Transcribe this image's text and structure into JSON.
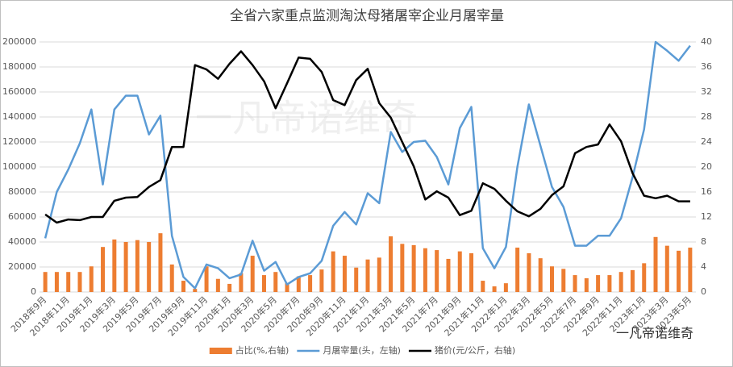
{
  "chart_data": {
    "type": "combo",
    "title": "全省六家重点监测淘汰母猪屠宰企业月屠宰量",
    "categories": [
      "2018年9月",
      null,
      "2018年11月",
      null,
      "2019年1月",
      null,
      "2019年3月",
      null,
      "2019年5月",
      null,
      "2019年7月",
      null,
      "2019年9月",
      null,
      "2019年11月",
      null,
      "2020年1月",
      null,
      "2020年3月",
      null,
      "2020年5月",
      null,
      "2020年7月",
      null,
      "2020年9月",
      null,
      "2020年11月",
      null,
      "2021年1月",
      null,
      "2021年3月",
      null,
      "2021年5月",
      null,
      "2021年7月",
      null,
      "2021年9月",
      null,
      "2021年11月",
      null,
      "2022年1月",
      null,
      "2022年3月",
      null,
      "2022年5月",
      null,
      "2022年7月",
      null,
      "2022年9月",
      null,
      "2022年11月",
      null,
      "2023年1月",
      null,
      "2023年3月",
      null,
      "2023年5月"
    ],
    "series": [
      {
        "name": "占比(%,右轴)",
        "type": "bar",
        "axis": "y2",
        "color": "#ed7d31",
        "values": [
          3.2,
          3.2,
          3.2,
          3.2,
          4.1,
          7.2,
          8.4,
          8.0,
          8.3,
          8.0,
          9.4,
          4.4,
          1.8,
          0.5,
          4.1,
          2.1,
          1.3,
          3.0,
          5.8,
          2.7,
          3.2,
          1.4,
          2.5,
          2.7,
          3.6,
          6.5,
          5.8,
          3.9,
          5.2,
          5.5,
          8.9,
          7.7,
          7.5,
          7.0,
          6.7,
          5.3,
          6.5,
          6.2,
          1.8,
          0.9,
          1.4,
          7.1,
          6.2,
          5.4,
          4.1,
          3.7,
          2.7,
          2.2,
          2.7,
          2.7,
          3.2,
          3.5,
          4.6,
          8.8,
          7.4,
          6.6,
          7.1
        ]
      },
      {
        "name": "月屠宰量(头，左轴)",
        "type": "line",
        "color": "#5b9bd5",
        "values": [
          43000,
          80000,
          98000,
          119000,
          146000,
          86000,
          146000,
          157000,
          157000,
          126000,
          141000,
          45000,
          12000,
          3000,
          22000,
          19000,
          11000,
          14000,
          41000,
          17000,
          24000,
          6000,
          12000,
          15000,
          25000,
          53000,
          64000,
          54000,
          79000,
          71000,
          128000,
          112000,
          120000,
          121000,
          108000,
          86000,
          131000,
          148000,
          35000,
          19000,
          36000,
          100000,
          150000,
          117000,
          84000,
          68000,
          37000,
          37000,
          45000,
          45000,
          59000,
          92000,
          130000,
          200000,
          193000,
          185000,
          197000
        ]
      },
      {
        "name": "猪价(元/公斤，右轴)",
        "type": "line",
        "axis": "y2",
        "color": "#000000",
        "values": [
          12.4,
          11.1,
          11.6,
          11.5,
          12.0,
          12.0,
          14.6,
          15.1,
          15.2,
          16.8,
          17.9,
          23.2,
          23.2,
          36.3,
          35.6,
          34.1,
          36.5,
          38.5,
          36.3,
          33.7,
          29.4,
          33.4,
          37.5,
          37.3,
          35.2,
          30.7,
          29.9,
          33.9,
          35.7,
          30.2,
          27.9,
          24.0,
          20.1,
          14.8,
          16.1,
          15.1,
          12.3,
          13.0,
          17.4,
          16.5,
          14.6,
          12.9,
          12.1,
          13.3,
          15.5,
          16.9,
          22.2,
          23.2,
          23.6,
          26.8,
          24.1,
          19.0,
          15.4,
          15.0,
          15.4,
          14.5,
          14.5
        ]
      }
    ],
    "ylim": [
      0,
      200000
    ],
    "yticks": [
      0,
      20000,
      40000,
      60000,
      80000,
      100000,
      120000,
      140000,
      160000,
      180000,
      200000
    ],
    "y2lim": [
      0,
      40
    ],
    "y2ticks": [
      0,
      4,
      8,
      12,
      16,
      20,
      24,
      28,
      32,
      36,
      40
    ],
    "grid": true,
    "legend": "bottom",
    "annotations": [
      "一凡帝诺维奇",
      "一凡帝诺维奇"
    ]
  }
}
